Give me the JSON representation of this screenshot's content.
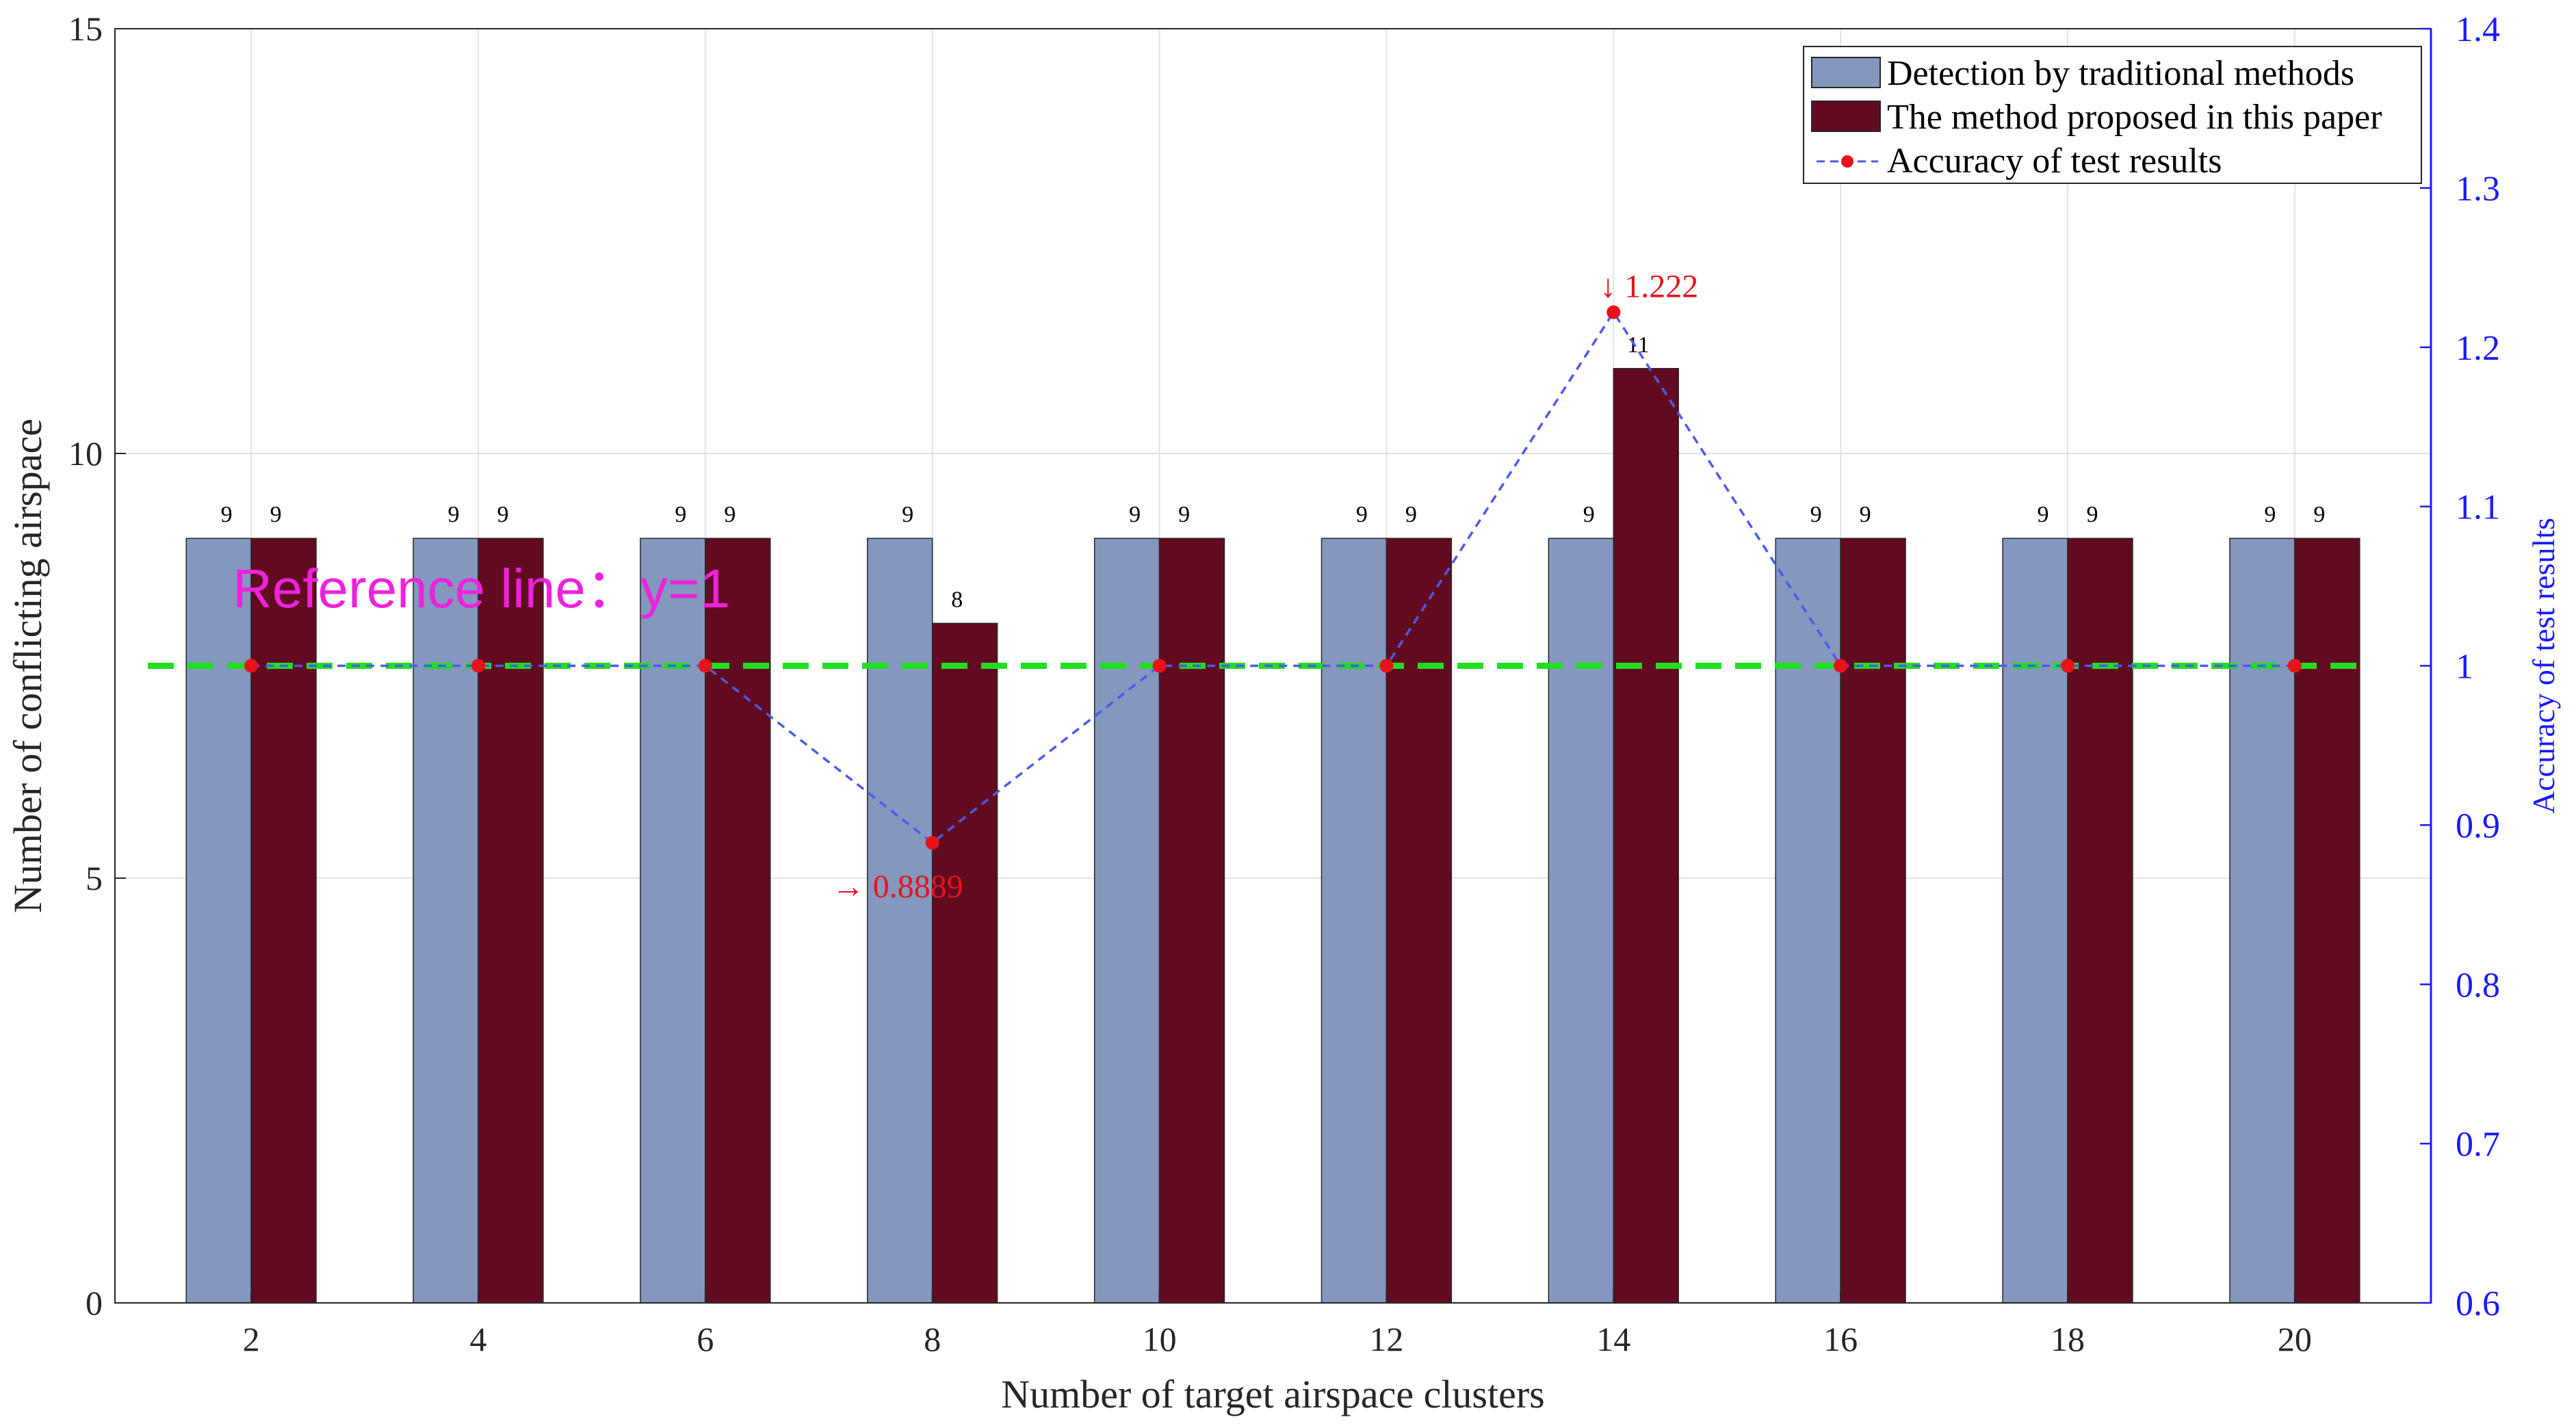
{
  "chart_data": {
    "type": "bar",
    "categories": [
      "2",
      "4",
      "6",
      "8",
      "10",
      "12",
      "14",
      "16",
      "18",
      "20"
    ],
    "series": [
      {
        "name": "Detection by traditional methods",
        "values": [
          9,
          9,
          9,
          9,
          9,
          9,
          9,
          9,
          9,
          9
        ],
        "labels": [
          "9",
          "9",
          "9",
          "9",
          "9",
          "9",
          "9",
          "9",
          "9",
          "9"
        ],
        "color": "#8497be"
      },
      {
        "name": "The method proposed in this paper",
        "values": [
          9,
          9,
          9,
          8,
          9,
          9,
          11,
          9,
          9,
          9
        ],
        "labels": [
          "9",
          "9",
          "9",
          "8",
          "9",
          "9",
          "11",
          "9",
          "9",
          "9"
        ],
        "color": "#620b20"
      }
    ],
    "line_series": {
      "name": "Accuracy of test results",
      "values": [
        1,
        1,
        1,
        0.8889,
        1,
        1,
        1.222,
        1,
        1,
        1
      ],
      "line_color": "#4a5bea",
      "marker_color": "#e8121a"
    },
    "annotations": [
      {
        "category": "8",
        "text": "→ 0.8889",
        "color": "#e8121a"
      },
      {
        "category": "14",
        "text": "↓ 1.222",
        "color": "#e8121a"
      }
    ],
    "reference_line": {
      "y_right": 1,
      "color": "#22dd22",
      "label": "Reference line：y=1",
      "label_color": "#ee22dd"
    },
    "xlabel": "Number of target airspace clusters",
    "ylabel": "Number of conflicting airspace",
    "ylabel_right": "Accuracy of test results",
    "ylim": [
      0,
      15
    ],
    "ylim_right": [
      0.6,
      1.4
    ],
    "yticks": [
      "0",
      "5",
      "10",
      "15"
    ],
    "yticks_right": [
      "0.6",
      "0.7",
      "0.8",
      "0.9",
      "1",
      "1.1",
      "1.2",
      "1.3",
      "1.4"
    ],
    "right_axis_color": "#1a1aff",
    "grid": true,
    "legend_position": "top-right"
  }
}
